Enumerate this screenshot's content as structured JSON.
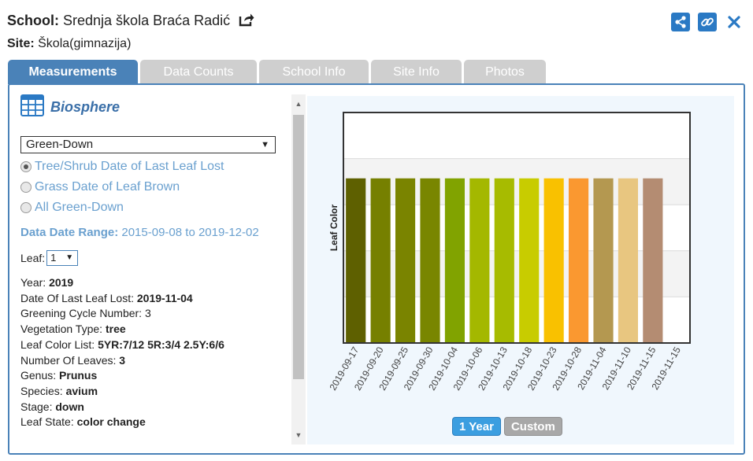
{
  "header": {
    "school_label": "School:",
    "school_name": "Srednja škola Braća Radić",
    "site_label": "Site:",
    "site_name": "Škola(gimnazija)"
  },
  "tabs": [
    {
      "label": "Measurements",
      "active": true
    },
    {
      "label": "Data Counts",
      "active": false
    },
    {
      "label": "School Info",
      "active": false
    },
    {
      "label": "Site Info",
      "active": false
    },
    {
      "label": "Photos",
      "active": false
    }
  ],
  "left": {
    "section_title": "Biosphere",
    "protocol_select": "Green-Down",
    "radios": [
      {
        "label": "Tree/Shrub Date of Last Leaf Lost",
        "selected": true
      },
      {
        "label": "Grass Date of Leaf Brown",
        "selected": false
      },
      {
        "label": "All Green-Down",
        "selected": false
      }
    ],
    "range_label": "Data Date Range:",
    "range_value": "2015-09-08 to 2019-12-02",
    "leaf_label": "Leaf:",
    "leaf_value": "1",
    "details": [
      {
        "label": "Year:",
        "value": "2019"
      },
      {
        "label": "Date Of Last Leaf Lost:",
        "value": "2019-11-04"
      },
      {
        "label": "Greening Cycle Number:",
        "value": "3"
      },
      {
        "label": "Vegetation Type:",
        "value": "tree"
      },
      {
        "label": "Leaf Color List:",
        "value": "5YR:7/12 5R:3/4 2.5Y:6/6"
      },
      {
        "label": "Number Of Leaves:",
        "value": "3"
      },
      {
        "label": "Genus:",
        "value": "Prunus"
      },
      {
        "label": "Species:",
        "value": "avium"
      },
      {
        "label": "Stage:",
        "value": "down"
      },
      {
        "label": "Leaf State:",
        "value": "color change"
      }
    ]
  },
  "chart_data": {
    "type": "bar",
    "ylabel": "Leaf Color",
    "categories": [
      "2019-09-17",
      "2019-09-20",
      "2019-09-25",
      "2019-09-30",
      "2019-10-04",
      "2019-10-06",
      "2019-10-13",
      "2019-10-18",
      "2019-10-23",
      "2019-10-28",
      "2019-11-04",
      "2019-11-10",
      "2019-11-15",
      "2019-11-15"
    ],
    "values": [
      1,
      1,
      1,
      1,
      1,
      1,
      1,
      1,
      1,
      1,
      1,
      1,
      1,
      null
    ],
    "colors": [
      "#5e6000",
      "#768000",
      "#7a8400",
      "#798600",
      "#81a300",
      "#a4b800",
      "#a7bb00",
      "#c8cc00",
      "#f9c100",
      "#fa9830",
      "#b49850",
      "#e8c680",
      "#b48c72",
      null
    ],
    "ylim": [
      0,
      1.4
    ],
    "grid": true
  },
  "chart_buttons": {
    "year": "1 Year",
    "custom": "Custom"
  }
}
